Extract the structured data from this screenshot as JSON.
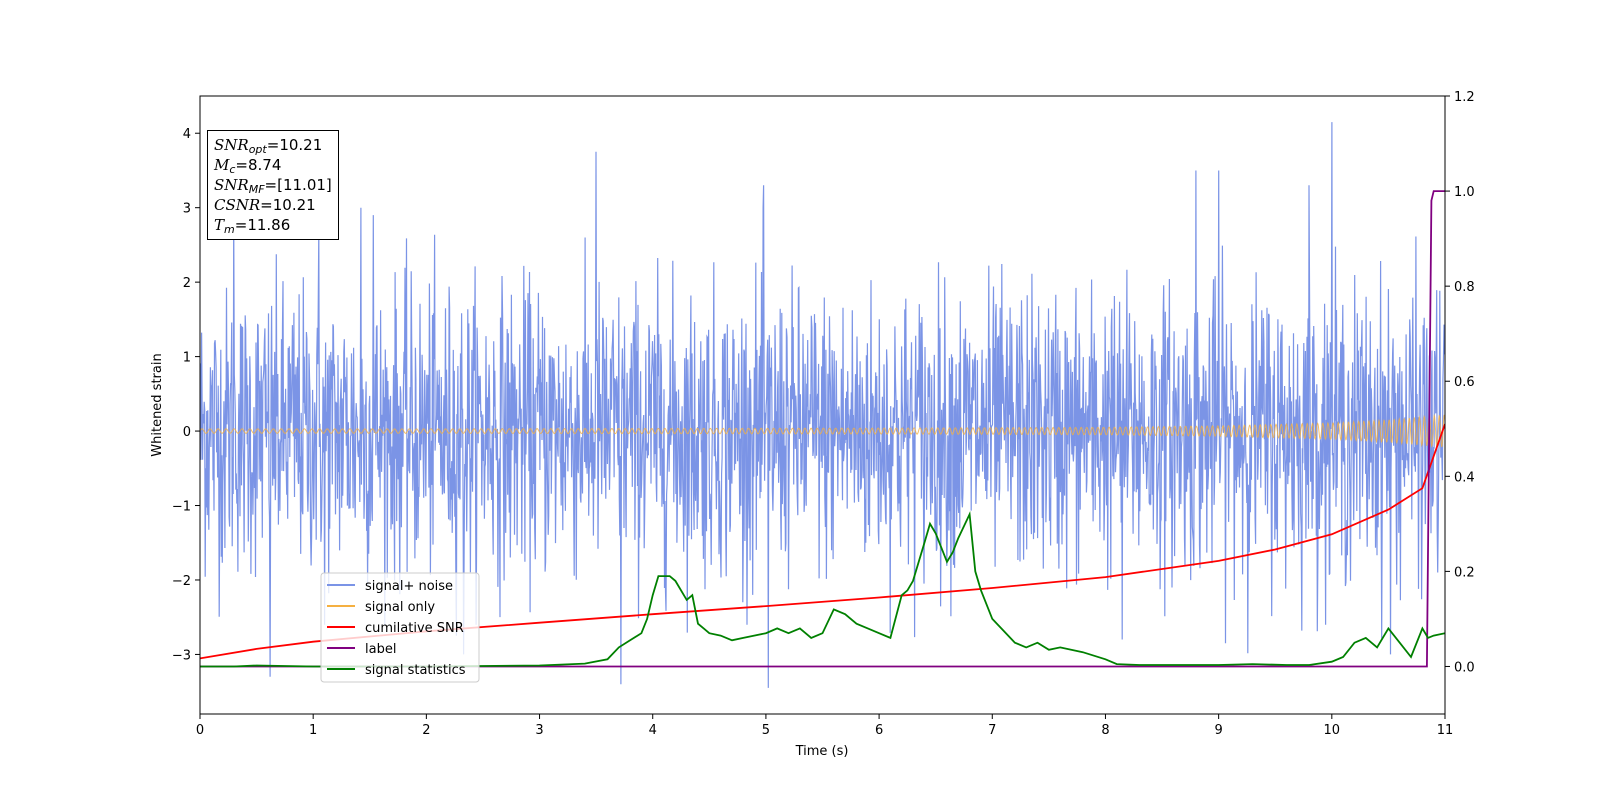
{
  "chart_data": {
    "type": "line",
    "title": "",
    "xlabel": "Time (s)",
    "ylabel": "Whitened strain",
    "xlim": [
      0,
      11
    ],
    "ylim": [
      -3.8,
      4.5
    ],
    "y2lim": [
      -0.1,
      1.2
    ],
    "grid": false,
    "legend_placement": "lower-left",
    "x_ticks": [
      "0",
      "1",
      "2",
      "3",
      "4",
      "5",
      "6",
      "7",
      "8",
      "9",
      "10",
      "11"
    ],
    "x_tick_values": [
      0,
      1,
      2,
      3,
      4,
      5,
      6,
      7,
      8,
      9,
      10,
      11
    ],
    "y_ticks": [
      "−3",
      "−2",
      "−1",
      "0",
      "1",
      "2",
      "3",
      "4"
    ],
    "y_tick_values": [
      -3,
      -2,
      -1,
      0,
      1,
      2,
      3,
      4
    ],
    "y2_ticks": [
      "0.0",
      "0.2",
      "0.4",
      "0.6",
      "0.8",
      "1.0",
      "1.2"
    ],
    "y2_tick_values": [
      0.0,
      0.2,
      0.4,
      0.6,
      0.8,
      1.0,
      1.2
    ],
    "series": [
      {
        "name": "signal+ noise",
        "axis": "left",
        "color": "#7b94e6",
        "description_of_values": "dense gaussian noise envelope, typical peaks",
        "x": [
          0.3,
          0.62,
          1.05,
          1.1,
          1.42,
          1.53,
          2.33,
          3.5,
          3.72,
          4.98,
          5.02,
          8.15,
          8.8,
          9.0,
          9.8,
          10.0,
          10.52
        ],
        "y": [
          2.9,
          -3.3,
          2.7,
          -2.6,
          3.0,
          2.9,
          -3.0,
          3.75,
          -3.4,
          3.3,
          -3.45,
          -2.8,
          3.5,
          3.5,
          3.3,
          4.15,
          -3.0
        ]
      },
      {
        "name": "signal only",
        "axis": "left",
        "color": "#f5b041",
        "x": [
          0,
          2,
          4,
          6,
          8,
          9,
          10,
          10.5,
          11
        ],
        "amplitude": [
          0.03,
          0.03,
          0.035,
          0.04,
          0.05,
          0.07,
          0.11,
          0.15,
          0.22
        ]
      },
      {
        "name": "cumilative SNR",
        "axis": "right",
        "color": "#ff0000",
        "x": [
          0,
          0.5,
          1,
          2,
          3,
          4,
          5,
          6,
          7,
          8,
          9,
          9.5,
          10,
          10.5,
          10.8,
          11
        ],
        "y": [
          0.017,
          0.037,
          0.052,
          0.074,
          0.092,
          0.11,
          0.127,
          0.145,
          0.165,
          0.188,
          0.222,
          0.246,
          0.278,
          0.33,
          0.375,
          0.51
        ]
      },
      {
        "name": "label",
        "axis": "right",
        "color": "#800080",
        "x": [
          0,
          10.84,
          10.88,
          10.9,
          11
        ],
        "y": [
          0,
          0,
          0.98,
          1.0,
          1.0
        ]
      },
      {
        "name": "signal statistics",
        "axis": "right",
        "color": "#008000",
        "x": [
          0,
          0.3,
          0.5,
          1,
          2,
          3,
          3.4,
          3.6,
          3.7,
          3.8,
          3.9,
          3.95,
          4.0,
          4.05,
          4.15,
          4.2,
          4.3,
          4.35,
          4.4,
          4.45,
          4.5,
          4.6,
          4.7,
          4.8,
          5.0,
          5.1,
          5.2,
          5.3,
          5.4,
          5.5,
          5.6,
          5.7,
          5.8,
          5.9,
          6.0,
          6.1,
          6.2,
          6.25,
          6.3,
          6.4,
          6.45,
          6.5,
          6.6,
          6.65,
          6.7,
          6.8,
          6.85,
          6.9,
          7.0,
          7.2,
          7.3,
          7.4,
          7.5,
          7.6,
          7.8,
          8.0,
          8.1,
          8.3,
          8.6,
          9.0,
          9.3,
          9.6,
          9.8,
          10.0,
          10.1,
          10.2,
          10.3,
          10.4,
          10.5,
          10.6,
          10.7,
          10.8,
          10.85,
          10.9,
          11.0
        ],
        "y": [
          0.0,
          0.0,
          0.002,
          0.0,
          0.0,
          0.002,
          0.006,
          0.015,
          0.04,
          0.055,
          0.07,
          0.1,
          0.15,
          0.19,
          0.19,
          0.18,
          0.14,
          0.15,
          0.09,
          0.08,
          0.07,
          0.065,
          0.055,
          0.06,
          0.07,
          0.08,
          0.07,
          0.08,
          0.06,
          0.07,
          0.12,
          0.11,
          0.09,
          0.08,
          0.07,
          0.06,
          0.15,
          0.16,
          0.18,
          0.26,
          0.3,
          0.28,
          0.22,
          0.24,
          0.27,
          0.32,
          0.2,
          0.16,
          0.1,
          0.05,
          0.04,
          0.05,
          0.035,
          0.04,
          0.03,
          0.015,
          0.005,
          0.003,
          0.003,
          0.003,
          0.005,
          0.003,
          0.003,
          0.01,
          0.02,
          0.05,
          0.06,
          0.04,
          0.08,
          0.05,
          0.02,
          0.08,
          0.06,
          0.065,
          0.07
        ]
      }
    ],
    "annotations": {
      "snr_opt": "10.21",
      "mc": "8.74",
      "snr_mf": "[11.01]",
      "csnr": "10.21",
      "tm": "11.86"
    }
  }
}
